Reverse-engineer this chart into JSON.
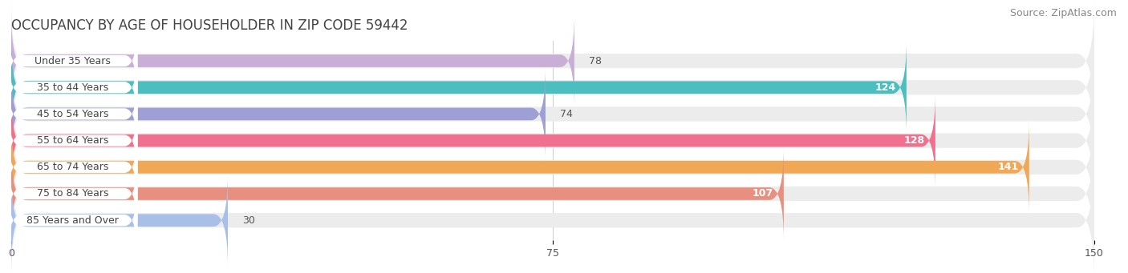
{
  "title": "OCCUPANCY BY AGE OF HOUSEHOLDER IN ZIP CODE 59442",
  "source": "Source: ZipAtlas.com",
  "categories": [
    "Under 35 Years",
    "35 to 44 Years",
    "45 to 54 Years",
    "55 to 64 Years",
    "65 to 74 Years",
    "75 to 84 Years",
    "85 Years and Over"
  ],
  "values": [
    78,
    124,
    74,
    128,
    141,
    107,
    30
  ],
  "bar_colors": [
    "#c9aed6",
    "#4bbfbf",
    "#9e9fd4",
    "#f07090",
    "#f0a855",
    "#e89080",
    "#a8c0e8"
  ],
  "xlim": [
    0,
    150
  ],
  "xticks": [
    0,
    75,
    150
  ],
  "bg_bar_color": "#ececec",
  "title_fontsize": 12,
  "source_fontsize": 9,
  "label_fontsize": 9,
  "value_fontsize": 9,
  "bar_height": 0.55,
  "fig_bg_color": "#ffffff",
  "label_box_color": "#ffffff"
}
